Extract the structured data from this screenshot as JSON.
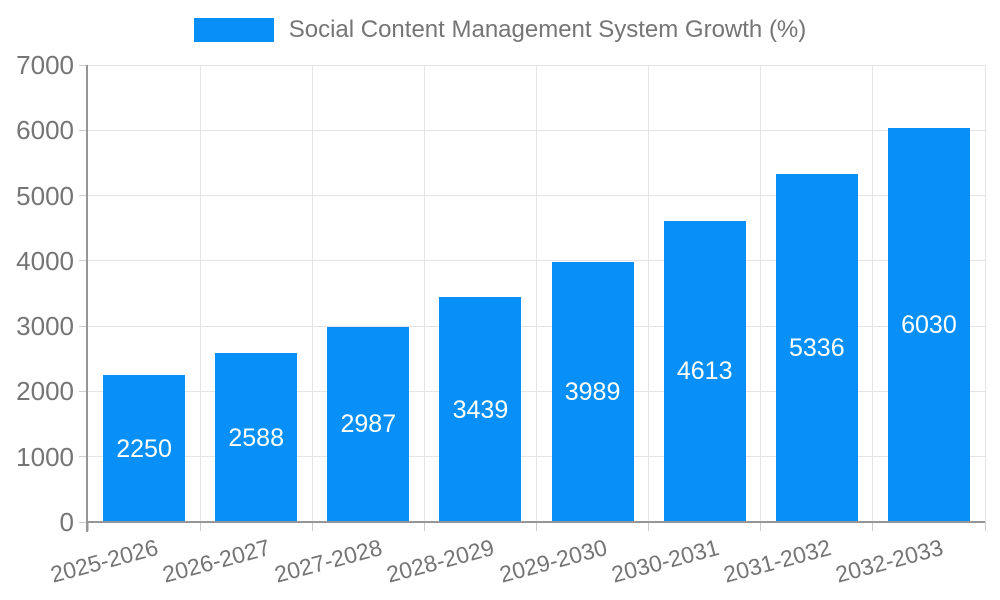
{
  "legend": {
    "label": "Social Content Management System Growth (%)"
  },
  "colors": {
    "bar": "#0890F8",
    "bar_label": "#FFFFFF",
    "grid": "#E4E4E4",
    "tick": "#CCCCCC",
    "axis": "#969696",
    "text": "#757575",
    "background": "#FFFFFF"
  },
  "chart_data": {
    "type": "bar",
    "title": "Social Content Management System Growth (%)",
    "categories": [
      "2025-2026",
      "2026-2027",
      "2027-2028",
      "2028-2029",
      "2029-2030",
      "2030-2031",
      "2031-2032",
      "2032-2033"
    ],
    "values": [
      2250,
      2588,
      2987,
      3439,
      3989,
      4613,
      5336,
      6030
    ],
    "xlabel": "",
    "ylabel": "",
    "ylim": [
      0,
      7000
    ],
    "ytick_step": 1000,
    "yticks": [
      0,
      1000,
      2000,
      3000,
      4000,
      5000,
      6000,
      7000
    ],
    "grid": true,
    "legend_position": "top",
    "bar_labels_inside": true,
    "x_label_rotation_deg": -15
  }
}
